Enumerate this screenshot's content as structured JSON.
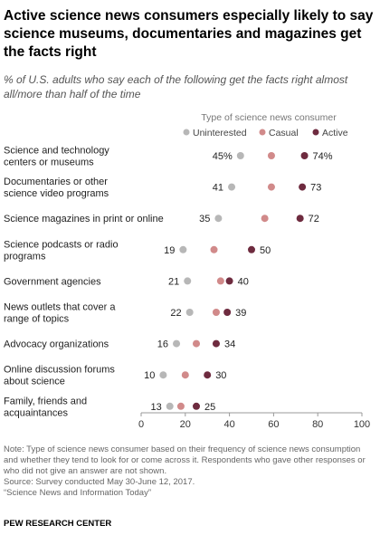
{
  "title": "Active science news consumers especially likely to say science museums, documentaries and magazines get the facts right",
  "subtitle": "% of U.S. adults who say each of the following get the facts right almost all/more than half of the time",
  "legend_title": "Type of science news consumer",
  "colors": {
    "Uninterested": "#b7b7b7",
    "Casual": "#d18a8a",
    "Active": "#6e2b3f"
  },
  "chart_data": {
    "type": "scatter",
    "title": "Active science news consumers especially likely to say science museums, documentaries and magazines get the facts right",
    "xlabel": "",
    "ylabel": "",
    "xlim": [
      0,
      100
    ],
    "x_ticks": [
      "0",
      "20",
      "40",
      "60",
      "80",
      "100"
    ],
    "grid": false,
    "legend": "top",
    "categories": [
      [
        "Science and technology",
        "centers or museums"
      ],
      [
        "Documentaries or other",
        "science video programs"
      ],
      [
        "Science magazines in print or online"
      ],
      [
        "Science podcasts or radio",
        "programs"
      ],
      [
        "Government agencies"
      ],
      [
        "News outlets that cover a",
        "range of topics"
      ],
      [
        "Advocacy organizations"
      ],
      [
        "Online discussion forums",
        "about science"
      ],
      [
        "Family, friends and",
        "acquaintances"
      ]
    ],
    "series": [
      {
        "name": "Uninterested",
        "values": [
          45,
          41,
          35,
          19,
          21,
          22,
          16,
          10,
          13
        ]
      },
      {
        "name": "Casual",
        "values": [
          59,
          59,
          56,
          33,
          36,
          34,
          25,
          20,
          18
        ]
      },
      {
        "name": "Active",
        "values": [
          74,
          73,
          72,
          50,
          40,
          39,
          34,
          30,
          25
        ]
      }
    ],
    "low_labels": [
      "45%",
      "41",
      "35",
      "19",
      "21",
      "22",
      "16",
      "10",
      "13"
    ],
    "high_labels": [
      "74%",
      "73",
      "72",
      "50",
      "40",
      "39",
      "34",
      "30",
      "25"
    ]
  },
  "note": {
    "line1": "Note: Type of science news consumer based on their frequency of science news consumption and whether they tend to look for or come across it. Respondents who gave other responses or who did not give an answer are not shown.",
    "line2": "Source: Survey conducted May 30-June 12, 2017.",
    "line3": "“Science News and Information Today”"
  },
  "org": "PEW RESEARCH CENTER"
}
